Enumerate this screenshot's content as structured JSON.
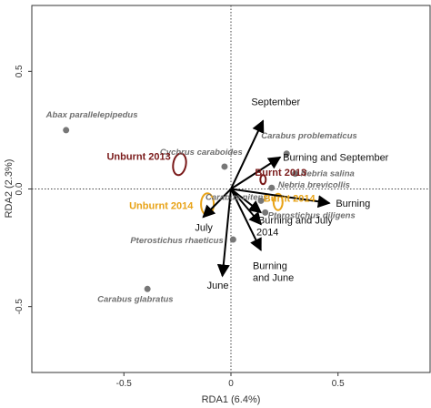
{
  "chart_data": {
    "type": "scatter",
    "title": "",
    "xlabel": "RDA1 (6.4%)",
    "ylabel": "RDA2 (2.3%)",
    "xlim": [
      -0.93,
      0.93
    ],
    "ylim": [
      -0.78,
      0.78
    ],
    "xticks": [
      -0.5,
      0,
      0.5
    ],
    "xtick_labels": [
      "-0.5",
      "0",
      "0.5"
    ],
    "yticks": [
      -0.5,
      0,
      0.5
    ],
    "ytick_labels": [
      "-0.5",
      "0.0",
      "0.5"
    ],
    "grid": false,
    "reference_lines": [
      "x=0 dotted",
      "y=0 dotted"
    ],
    "species": [
      {
        "name": "Abax parallelepipedus",
        "x": -0.77,
        "y": 0.25
      },
      {
        "name": "Cychrus caraboides",
        "x": -0.03,
        "y": 0.095
      },
      {
        "name": "Carabus problematicus",
        "x": 0.26,
        "y": 0.15
      },
      {
        "name": "Nebria salina",
        "x": 0.3,
        "y": 0.065
      },
      {
        "name": "Nebria brevicollis",
        "x": 0.19,
        "y": 0.005
      },
      {
        "name": "Carabus nitens",
        "x": 0.14,
        "y": -0.05
      },
      {
        "name": "Pterostichus diligens",
        "x": 0.16,
        "y": -0.1
      },
      {
        "name": "Pterostichus rhaeticus",
        "x": 0.01,
        "y": -0.215
      },
      {
        "name": "Carabus glabratus",
        "x": -0.39,
        "y": -0.425
      }
    ],
    "environmental_vectors": [
      {
        "name": "September",
        "x": 0.15,
        "y": 0.29
      },
      {
        "name": "Burning and September",
        "x": 0.23,
        "y": 0.135
      },
      {
        "name": "Burning",
        "x": 0.46,
        "y": -0.06
      },
      {
        "name": "Burning and July",
        "x": 0.14,
        "y": -0.1
      },
      {
        "name": "2014",
        "x": 0.14,
        "y": -0.15
      },
      {
        "name": "Burning and June",
        "x": 0.14,
        "y": -0.26
      },
      {
        "name": "July",
        "x": -0.13,
        "y": -0.12
      },
      {
        "name": "June",
        "x": -0.04,
        "y": -0.37
      }
    ],
    "group_centroids": [
      {
        "name": "Unburnt 2013",
        "x": -0.24,
        "y": 0.105,
        "color": "#7a1a1a"
      },
      {
        "name": "Burnt 2013",
        "x": 0.15,
        "y": 0.04,
        "color": "#7a1a1a"
      },
      {
        "name": "Unburnt 2014",
        "x": -0.11,
        "y": -0.065,
        "color": "#e8a317"
      },
      {
        "name": "Burnt 2014",
        "x": 0.22,
        "y": -0.055,
        "color": "#e8a317"
      }
    ],
    "colors": {
      "species_point": "#777777",
      "arrow": "#000000",
      "group_2013": "#7a1a1a",
      "group_2014": "#e8a317"
    }
  }
}
